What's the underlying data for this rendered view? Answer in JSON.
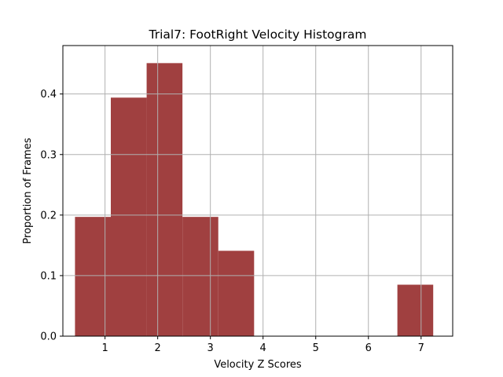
{
  "chart_data": {
    "type": "bar",
    "title": "Trial7: FootRight Velocity Histogram",
    "xlabel": "Velocity Z Scores",
    "ylabel": "Proportion of Frames",
    "xlim": [
      0.2,
      7.6
    ],
    "ylim": [
      0,
      0.48
    ],
    "xticks": [
      1,
      2,
      3,
      4,
      5,
      6,
      7
    ],
    "yticks": [
      0.0,
      0.1,
      0.2,
      0.3,
      0.4
    ],
    "ytick_labels": [
      "0.0",
      "0.1",
      "0.2",
      "0.3",
      "0.4"
    ],
    "grid": true,
    "bin_edges": [
      0.43,
      1.11,
      1.79,
      2.47,
      3.15,
      3.83,
      4.51,
      5.19,
      5.87,
      6.55,
      7.23
    ],
    "values": [
      0.197,
      0.394,
      0.451,
      0.197,
      0.141,
      0,
      0,
      0,
      0,
      0.085
    ],
    "colors": {
      "bar": "#a04040",
      "grid": "#b0b0b0",
      "axis": "#000000"
    }
  }
}
